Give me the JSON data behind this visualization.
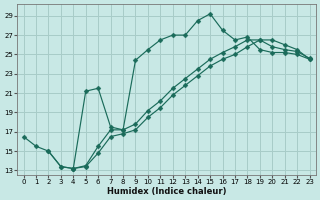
{
  "xlabel": "Humidex (Indice chaleur)",
  "bg_color": "#c8e8e5",
  "grid_color": "#a8ccc8",
  "line_color": "#1a6b5a",
  "xlim": [
    -0.5,
    23.5
  ],
  "ylim": [
    12.5,
    30.2
  ],
  "xticks": [
    0,
    1,
    2,
    3,
    4,
    5,
    6,
    7,
    8,
    9,
    10,
    11,
    12,
    13,
    14,
    15,
    16,
    17,
    18,
    19,
    20,
    21,
    22,
    23
  ],
  "yticks": [
    13,
    15,
    17,
    19,
    21,
    23,
    25,
    27,
    29
  ],
  "line1_x": [
    0,
    1,
    2,
    3,
    4,
    5,
    6,
    7,
    8,
    9,
    10,
    11,
    12,
    13,
    14,
    15,
    16,
    17,
    18,
    19,
    20,
    21,
    22,
    23
  ],
  "line1_y": [
    16.5,
    15.5,
    15.0,
    13.4,
    13.2,
    21.2,
    21.5,
    17.5,
    17.2,
    24.4,
    25.5,
    26.5,
    27.0,
    27.0,
    28.5,
    29.2,
    27.5,
    26.5,
    26.8,
    25.5,
    25.2,
    25.2,
    25.0,
    24.5
  ],
  "line2_x": [
    4,
    5,
    6,
    7,
    8,
    9,
    10,
    11,
    12,
    13,
    14,
    15,
    16,
    17,
    18,
    19,
    20,
    21,
    22,
    23
  ],
  "line2_y": [
    13.2,
    13.5,
    15.5,
    17.2,
    17.2,
    17.8,
    19.2,
    20.2,
    21.5,
    22.5,
    23.5,
    24.5,
    25.2,
    25.8,
    26.5,
    26.5,
    25.8,
    25.5,
    25.3,
    24.6
  ],
  "line3_x": [
    2,
    3,
    4,
    5,
    6,
    7,
    8,
    9,
    10,
    11,
    12,
    13,
    14,
    15,
    16,
    17,
    18,
    19,
    20,
    21,
    22,
    23
  ],
  "line3_y": [
    15.0,
    13.4,
    13.2,
    13.4,
    14.8,
    16.5,
    16.8,
    17.2,
    18.5,
    19.5,
    20.8,
    21.8,
    22.8,
    23.8,
    24.5,
    25.0,
    25.8,
    26.5,
    26.5,
    26.0,
    25.5,
    24.5
  ]
}
